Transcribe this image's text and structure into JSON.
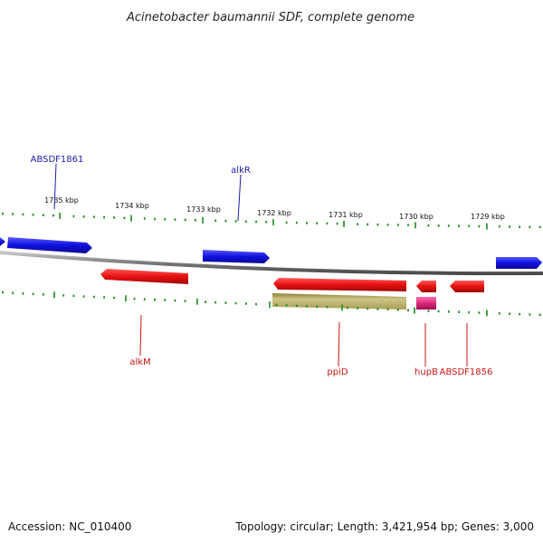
{
  "header": {
    "title": "Acinetobacter baumannii SDF, complete genome"
  },
  "footer": {
    "accession": "Accession: NC_010400",
    "summary": "Topology: circular; Length: 3,421,954 bp; Genes: 3,000"
  },
  "scale": {
    "ticks": [
      "1735 kbp",
      "1734 kbp",
      "1733 kbp",
      "1732 kbp",
      "1731 kbp",
      "1730 kbp",
      "1729 kbp"
    ],
    "tick_color": "#1a8c1a"
  },
  "colors": {
    "forward_strand": "#1f1fe0",
    "reverse_strand": "#e01414",
    "backbone": "#8a8a8a",
    "other_feature": "#b8b070",
    "highlight_feature": "#e0287a",
    "forward_label": "#1a1aa8",
    "reverse_label": "#c81414"
  },
  "labels": {
    "absdf1861": "ABSDF1861",
    "alkr": "alkR",
    "alkm": "alkM",
    "ppid": "ppiD",
    "hupb": "hupB",
    "absdf1856": "ABSDF1856"
  }
}
